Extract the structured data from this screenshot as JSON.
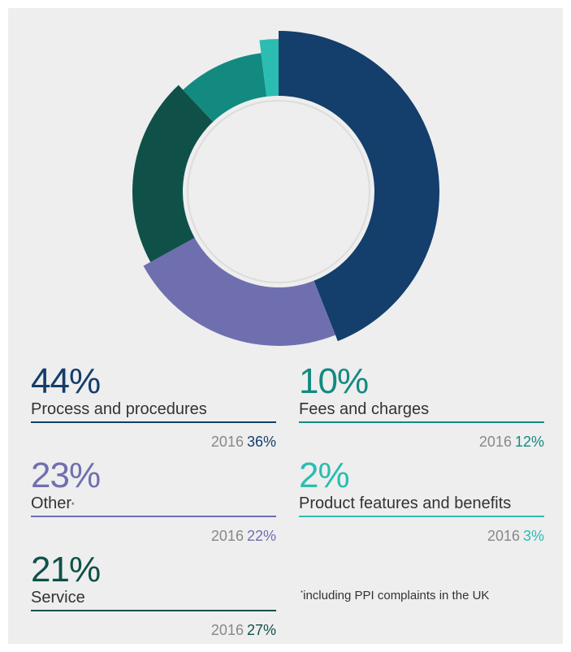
{
  "colors": {
    "process": "#143e6b",
    "other": "#6f6fb0",
    "service": "#0f5149",
    "fees": "#138a80",
    "product": "#2bbdb1",
    "gray_text": "#888888",
    "ring": "#dcdcdc"
  },
  "chart_data": {
    "type": "pie",
    "donut": true,
    "series": [
      {
        "name": "Process and procedures",
        "value": 44,
        "previous": 36,
        "previous_year": "2016"
      },
      {
        "name": "Other",
        "value": 23,
        "previous": 22,
        "previous_year": "2016",
        "footnote_mark": "*"
      },
      {
        "name": "Service",
        "value": 21,
        "previous": 27,
        "previous_year": "2016"
      },
      {
        "name": "Fees and charges",
        "value": 10,
        "previous": 12,
        "previous_year": "2016"
      },
      {
        "name": "Product features and benefits",
        "value": 2,
        "previous": 3,
        "previous_year": "2016"
      }
    ]
  },
  "legend": {
    "process": {
      "pct": "44%",
      "label": "Process and procedures",
      "year": "2016",
      "prev": "36%"
    },
    "other": {
      "pct": "23%",
      "label": "Other",
      "mark": "*",
      "year": "2016",
      "prev": "22%"
    },
    "service": {
      "pct": "21%",
      "label": "Service",
      "year": "2016",
      "prev": "27%"
    },
    "fees": {
      "pct": "10%",
      "label": "Fees and charges",
      "year": "2016",
      "prev": "12%"
    },
    "product": {
      "pct": "2%",
      "label": "Product features and benefits",
      "year": "2016",
      "prev": "3%"
    }
  },
  "footnote": {
    "mark": "*",
    "text": "including PPI complaints in the UK"
  }
}
